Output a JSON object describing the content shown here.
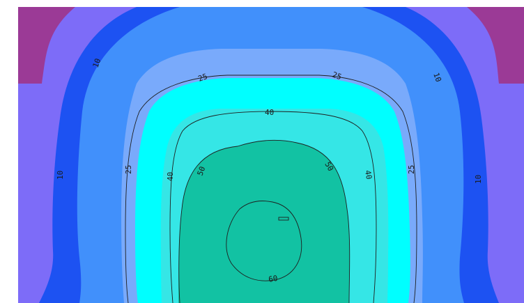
{
  "chart_data": {
    "type": "heatmap",
    "subtype": "filled-contour",
    "title": "",
    "xlabel": "",
    "ylabel": "",
    "grid": false,
    "legend": "none",
    "bands": [
      {
        "min": 0,
        "max": 5,
        "color": "#9b3a96"
      },
      {
        "min": 5,
        "max": 10,
        "color": "#7d6cf8"
      },
      {
        "min": 10,
        "max": 20,
        "color": "#1d52f2"
      },
      {
        "min": 20,
        "max": 25,
        "color": "#4190fb"
      },
      {
        "min": 25,
        "max": 35,
        "color": "#79aafb"
      },
      {
        "min": 35,
        "max": 40,
        "color": "#00ffff"
      },
      {
        "min": 40,
        "max": 50,
        "color": "#35e6e6"
      },
      {
        "min": 50,
        "max": 70,
        "color": "#12c2a3"
      }
    ],
    "contour_levels": [
      10,
      25,
      40,
      50,
      60
    ],
    "contour_labels": [
      {
        "text": "10",
        "level": 10
      },
      {
        "text": "10",
        "level": 10
      },
      {
        "text": "10",
        "level": 10
      },
      {
        "text": "10",
        "level": 10
      },
      {
        "text": "25",
        "level": 25
      },
      {
        "text": "25",
        "level": 25
      },
      {
        "text": "25",
        "level": 25
      },
      {
        "text": "25",
        "level": 25
      },
      {
        "text": "40",
        "level": 40
      },
      {
        "text": "40",
        "level": 40
      },
      {
        "text": "40",
        "level": 40
      },
      {
        "text": "50",
        "level": 50
      },
      {
        "text": "50",
        "level": 50
      },
      {
        "text": "60",
        "level": 60
      }
    ]
  }
}
